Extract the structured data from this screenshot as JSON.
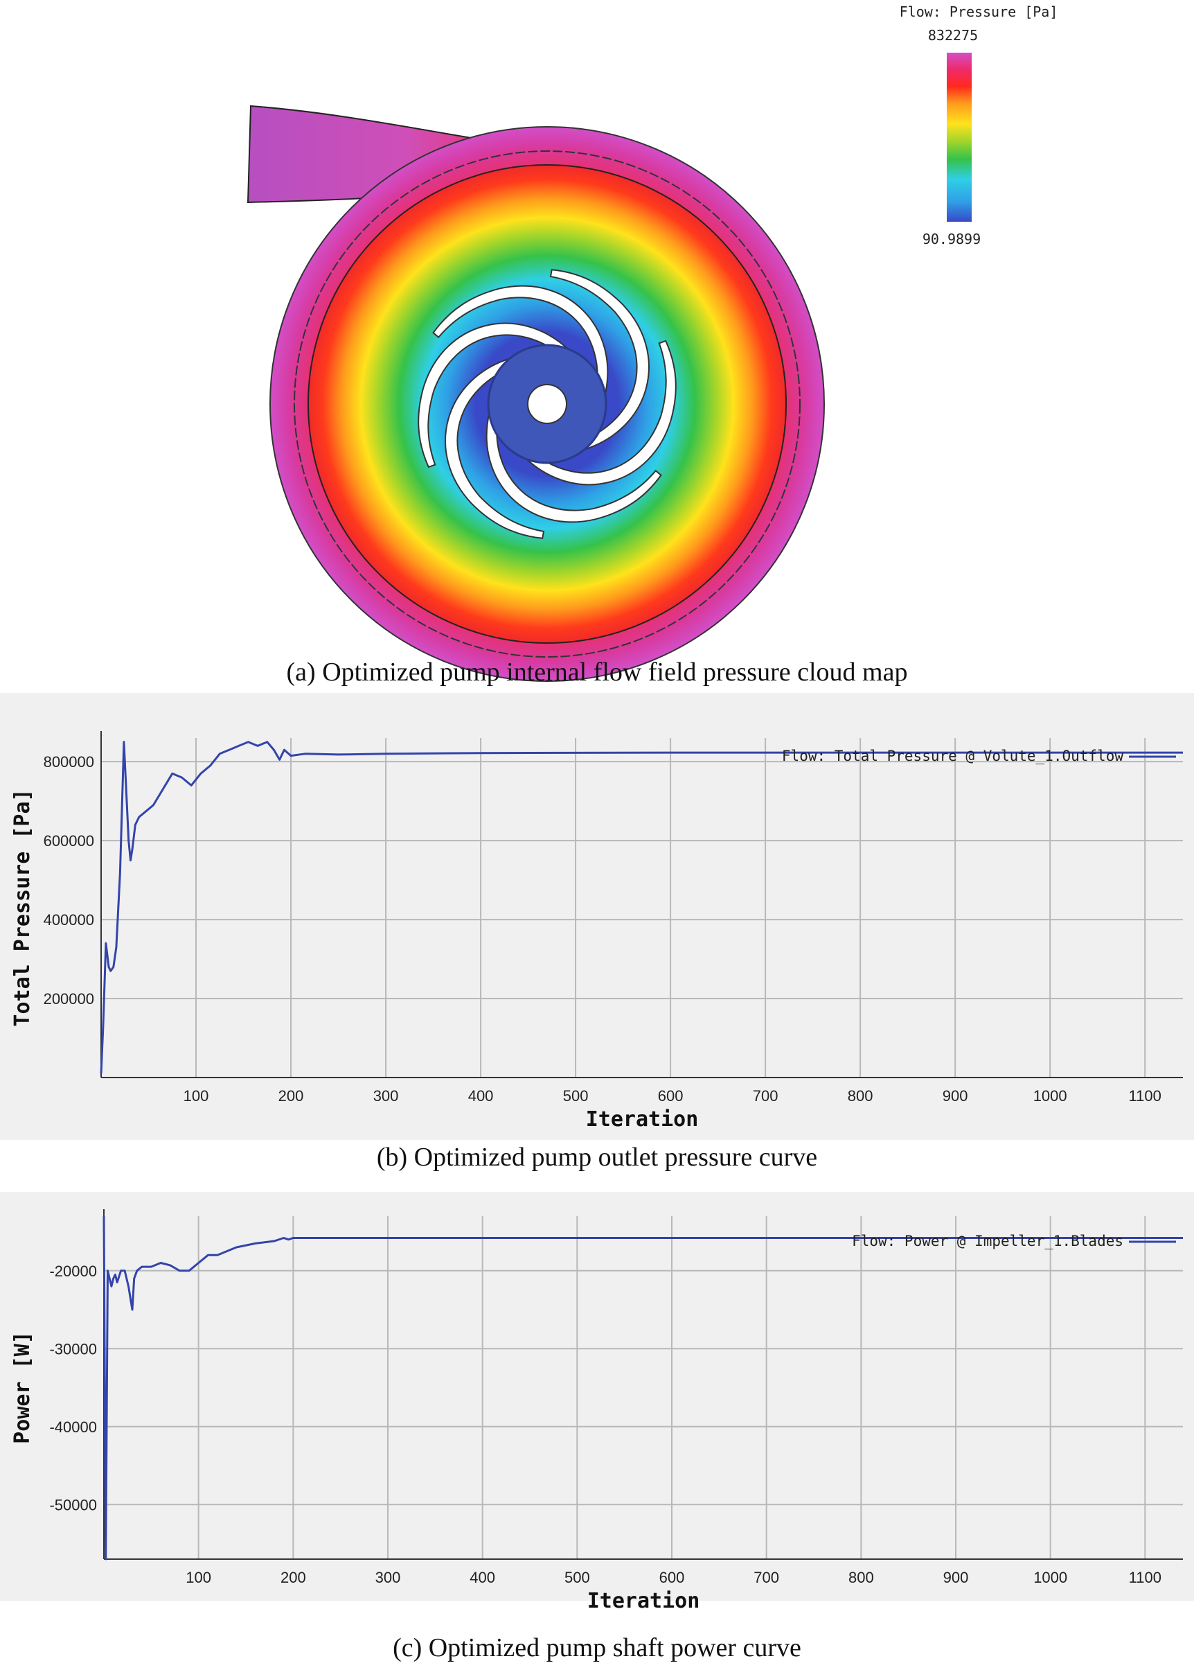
{
  "figure_a": {
    "caption": "(a) Optimized pump internal flow field pressure cloud map",
    "legend_title": "Flow: Pressure [Pa]",
    "legend_max": "832275",
    "legend_min": "90.9899",
    "colormap": [
      "#3949c8",
      "#2fa0e6",
      "#2fcfe6",
      "#35c24a",
      "#a6d62a",
      "#ffe21c",
      "#ff9a1c",
      "#ff2a1c",
      "#ef2a6a",
      "#d24fc8"
    ]
  },
  "chart_data": [
    {
      "type": "line",
      "title": "",
      "caption": "(b) Optimized pump outlet pressure curve",
      "xlabel": "Iteration",
      "ylabel": "Total Pressure [Pa]",
      "xlim": [
        0,
        1140
      ],
      "ylim": [
        0,
        860000
      ],
      "xticks": [
        100,
        200,
        300,
        400,
        500,
        600,
        700,
        800,
        900,
        1000,
        1100
      ],
      "yticks": [
        200000,
        400000,
        600000,
        800000
      ],
      "xtick_labels": [
        "100",
        "200",
        "300",
        "400",
        "500",
        "600",
        "700",
        "800",
        "900",
        "1000",
        "1100"
      ],
      "ytick_labels": [
        "200000",
        "400000",
        "600000",
        "800000"
      ],
      "grid": true,
      "legend_position": "top-right",
      "series": [
        {
          "name": "Flow: Total Pressure @ Volute_1.Outflow",
          "color": "#3344aa",
          "x": [
            0,
            2,
            5,
            8,
            10,
            13,
            16,
            20,
            24,
            27,
            29,
            31,
            33,
            36,
            40,
            45,
            55,
            65,
            75,
            85,
            95,
            105,
            115,
            125,
            135,
            145,
            155,
            165,
            175,
            182,
            188,
            193,
            200,
            215,
            250,
            300,
            400,
            600,
            800,
            1000,
            1140
          ],
          "y": [
            10000,
            120000,
            340000,
            280000,
            270000,
            280000,
            330000,
            520000,
            850000,
            700000,
            600000,
            550000,
            580000,
            640000,
            660000,
            670000,
            690000,
            730000,
            770000,
            760000,
            740000,
            770000,
            790000,
            820000,
            830000,
            840000,
            850000,
            840000,
            850000,
            830000,
            805000,
            830000,
            815000,
            820000,
            818000,
            820000,
            822000,
            823000,
            823000,
            823000,
            823000
          ]
        }
      ]
    },
    {
      "type": "line",
      "title": "",
      "caption": "(c) Optimized pump shaft power curve",
      "xlabel": "Iteration",
      "ylabel": "Power [W]",
      "xlim": [
        0,
        1140
      ],
      "ylim": [
        -57000,
        -13000
      ],
      "xticks": [
        100,
        200,
        300,
        400,
        500,
        600,
        700,
        800,
        900,
        1000,
        1100
      ],
      "yticks": [
        -20000,
        -30000,
        -40000,
        -50000
      ],
      "xtick_labels": [
        "100",
        "200",
        "300",
        "400",
        "500",
        "600",
        "700",
        "800",
        "900",
        "1000",
        "1100"
      ],
      "ytick_labels": [
        "-20000",
        "-30000",
        "-40000",
        "-50000"
      ],
      "grid": true,
      "legend_position": "top-right",
      "series": [
        {
          "name": "Flow: Power @ Impeller_1.Blades",
          "color": "#3344aa",
          "x": [
            0,
            2,
            4,
            6,
            8,
            10,
            12,
            14,
            18,
            22,
            26,
            30,
            32,
            35,
            40,
            50,
            60,
            70,
            80,
            90,
            100,
            110,
            120,
            140,
            160,
            180,
            190,
            195,
            200,
            250,
            400,
            600,
            800,
            1000,
            1140
          ],
          "y": [
            -13000,
            -57000,
            -20000,
            -21000,
            -22000,
            -21000,
            -20500,
            -21500,
            -20000,
            -20000,
            -22000,
            -25000,
            -21000,
            -20000,
            -19500,
            -19500,
            -19000,
            -19300,
            -20000,
            -20000,
            -19000,
            -18000,
            -18000,
            -17000,
            -16500,
            -16200,
            -15800,
            -16000,
            -15800,
            -15800,
            -15800,
            -15800,
            -15800,
            -15800,
            -15800
          ]
        }
      ]
    }
  ]
}
